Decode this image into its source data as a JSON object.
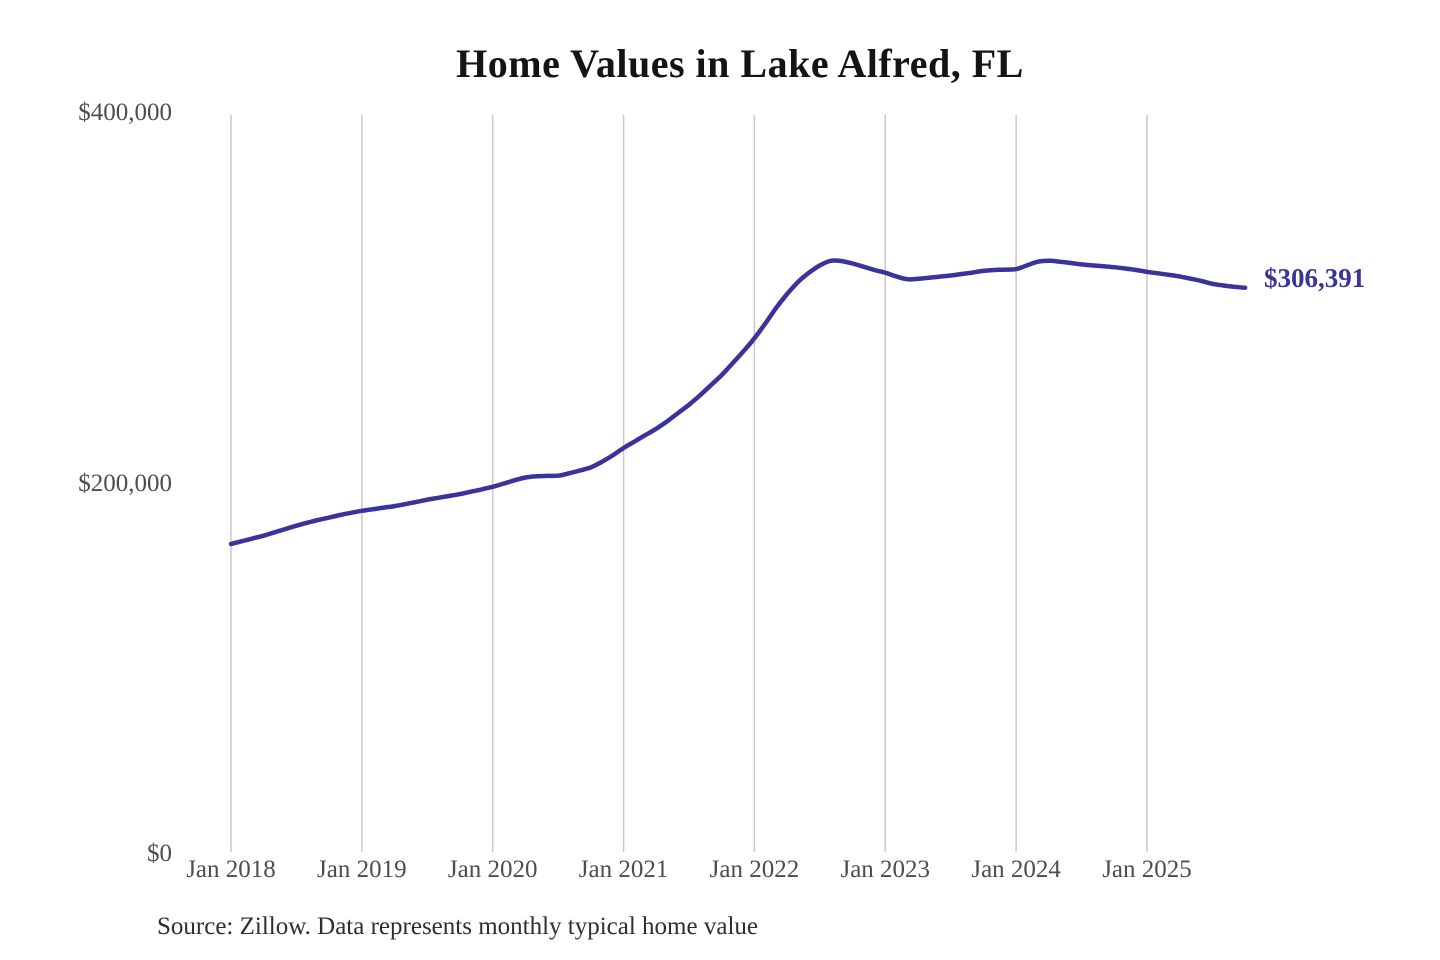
{
  "page": {
    "background_color": "#ffffff"
  },
  "chart_data": {
    "type": "line",
    "title": "Home Values in Lake Alfred, FL",
    "series_name": "Monthly typical home value",
    "source": "Source: Zillow. Data represents monthly typical home value",
    "x_monthly_start": "2018-01",
    "x_monthly_end": "2025-10",
    "x_tick_labels": [
      "Jan 2018",
      "Jan 2019",
      "Jan 2020",
      "Jan 2021",
      "Jan 2022",
      "Jan 2023",
      "Jan 2024",
      "Jan 2025"
    ],
    "y_tick_labels": [
      "$0",
      "$200,000",
      "$400,000"
    ],
    "y_ticks": [
      0,
      200000,
      400000
    ],
    "ylim": [
      0,
      400000
    ],
    "grid": "vertical-only",
    "legend": "none",
    "line_color": "#3a339a",
    "grid_color": "#c9c9c9",
    "tick_label_color": "#4d4d4d",
    "end_value": 306391,
    "end_value_label": "$306,391",
    "values": [
      167500,
      169000,
      170500,
      172000,
      173800,
      175600,
      177400,
      179000,
      180500,
      181800,
      183200,
      184400,
      185500,
      186300,
      187200,
      188000,
      189100,
      190300,
      191500,
      192500,
      193500,
      194500,
      195800,
      197100,
      198500,
      200200,
      202000,
      203500,
      204200,
      204400,
      204500,
      205800,
      207300,
      209000,
      212000,
      215500,
      219500,
      223000,
      226500,
      230000,
      234000,
      238500,
      243000,
      248000,
      253500,
      259000,
      265500,
      272000,
      279000,
      287000,
      295500,
      303000,
      309500,
      314500,
      318500,
      321000,
      320800,
      319500,
      317800,
      316000,
      314500,
      312500,
      311000,
      311200,
      311800,
      312400,
      313000,
      313800,
      314600,
      315500,
      316000,
      316200,
      316500,
      318500,
      320500,
      321000,
      320500,
      319800,
      319000,
      318500,
      318000,
      317500,
      316800,
      316000,
      315000,
      314200,
      313400,
      312500,
      311300,
      310000,
      308500,
      307600,
      306900,
      306391
    ]
  }
}
